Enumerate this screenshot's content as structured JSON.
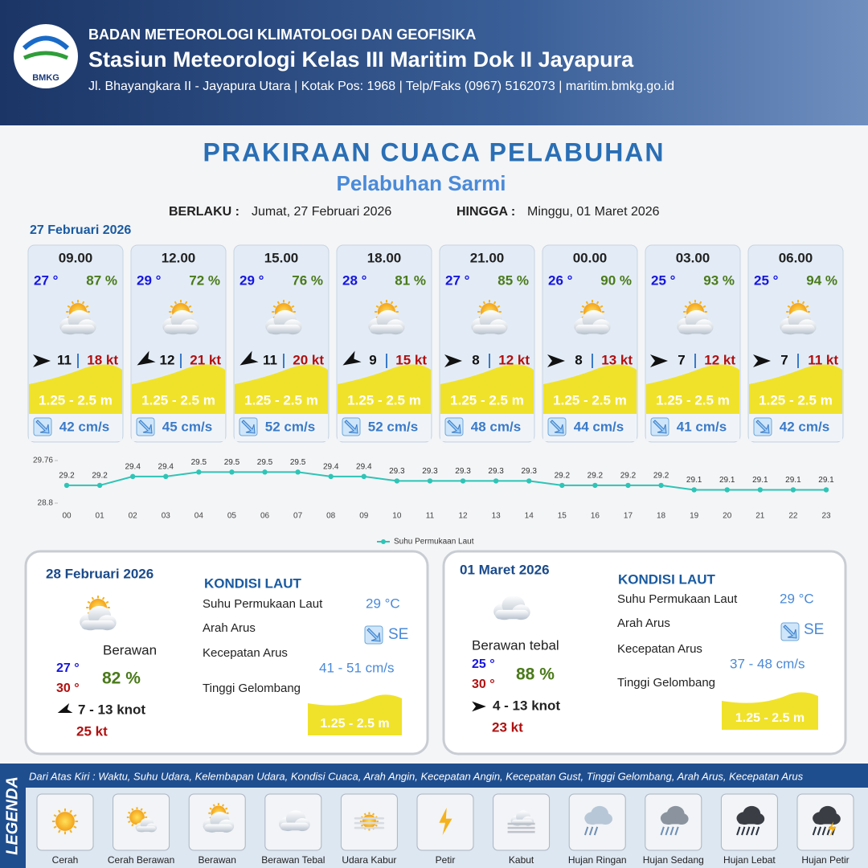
{
  "header": {
    "logo": "BMKG",
    "org": "BADAN METEOROLOGI KLIMATOLOGI DAN GEOFISIKA",
    "station": "Stasiun Meteorologi Kelas III Maritim Dok II Jayapura",
    "address": "Jl. Bhayangkara II - Jayapura Utara | Kotak Pos: 1968 | Telp/Faks (0967) 5162073 | maritim.bmkg.go.id"
  },
  "title": "PRAKIRAAN CUACA PELABUHAN",
  "subtitle": "Pelabuhan Sarmi",
  "validity": {
    "from_label": "BERLAKU :",
    "from": "Jumat, 27 Februari 2026",
    "to_label": "HINGGA :",
    "to": "Minggu, 01 Maret 2026"
  },
  "day1": {
    "date": "27 Februari 2026",
    "slots": [
      {
        "time": "09.00",
        "temp": "27 °",
        "humidity": "87 %",
        "wind": 11,
        "gust": "18 kt",
        "wave": "1.25 - 2.5 m",
        "current": "42 cm/s"
      },
      {
        "time": "12.00",
        "temp": "29 °",
        "humidity": "72 %",
        "wind": 12,
        "gust": "21 kt",
        "wave": "1.25 - 2.5 m",
        "current": "45 cm/s"
      },
      {
        "time": "15.00",
        "temp": "29 °",
        "humidity": "76 %",
        "wind": 11,
        "gust": "20 kt",
        "wave": "1.25 - 2.5 m",
        "current": "52 cm/s"
      },
      {
        "time": "18.00",
        "temp": "28 °",
        "humidity": "81 %",
        "wind": 9,
        "gust": "15 kt",
        "wave": "1.25 - 2.5 m",
        "current": "52 cm/s"
      },
      {
        "time": "21.00",
        "temp": "27 °",
        "humidity": "85 %",
        "wind": 8,
        "gust": "12 kt",
        "wave": "1.25 - 2.5 m",
        "current": "48 cm/s"
      },
      {
        "time": "00.00",
        "temp": "26 °",
        "humidity": "90 %",
        "wind": 8,
        "gust": "13 kt",
        "wave": "1.25 - 2.5 m",
        "current": "44 cm/s"
      },
      {
        "time": "03.00",
        "temp": "25 °",
        "humidity": "93 %",
        "wind": 7,
        "gust": "12 kt",
        "wave": "1.25 - 2.5 m",
        "current": "41 cm/s"
      },
      {
        "time": "06.00",
        "temp": "25 °",
        "humidity": "94 %",
        "wind": 7,
        "gust": "11 kt",
        "wave": "1.25 - 2.5 m",
        "current": "42 cm/s"
      }
    ]
  },
  "chart_data": {
    "type": "line",
    "categories": [
      "00",
      "01",
      "02",
      "03",
      "04",
      "05",
      "06",
      "07",
      "08",
      "09",
      "10",
      "11",
      "12",
      "13",
      "14",
      "15",
      "16",
      "17",
      "18",
      "19",
      "20",
      "21",
      "22",
      "23"
    ],
    "series": [
      {
        "name": "Suhu Permukaan Laut",
        "color": "#2ec4b6",
        "values": [
          29.2,
          29.2,
          29.4,
          29.4,
          29.5,
          29.5,
          29.5,
          29.5,
          29.4,
          29.4,
          29.3,
          29.3,
          29.3,
          29.3,
          29.3,
          29.2,
          29.2,
          29.2,
          29.2,
          29.1,
          29.1,
          29.1,
          29.1,
          29.1
        ]
      }
    ],
    "ylim": [
      28.8,
      29.76
    ],
    "yticks": [
      28.8,
      29.76
    ],
    "legend": "bottom"
  },
  "panels": [
    {
      "date": "28 Februari 2026",
      "condition": "Berawan",
      "temp_min": "27 °",
      "temp_max": "30 °",
      "humidity": "82 %",
      "wind": "7  - 13 knot",
      "gust": "25 kt",
      "sea_title": "KONDISI LAUT",
      "sst_label": "Suhu Permukaan Laut",
      "sst": "29 °C",
      "dir_label": "Arah Arus",
      "dir": "SE",
      "speed_label": "Kecepatan Arus",
      "speed": "41 - 51 cm/s",
      "wave_label": "Tinggi Gelombang",
      "wave": "1.25 - 2.5 m"
    },
    {
      "date": "01 Maret 2026",
      "condition": "Berawan tebal",
      "temp_min": "25 °",
      "temp_max": "30 °",
      "humidity": "88 %",
      "wind": "4  - 13 knot",
      "gust": "23 kt",
      "sea_title": "KONDISI LAUT",
      "sst_label": "Suhu Permukaan Laut",
      "sst": "29 °C",
      "dir_label": "Arah Arus",
      "dir": "SE",
      "speed_label": "Kecepatan Arus",
      "speed": "37  - 48 cm/s",
      "wave_label": "Tinggi Gelombang",
      "wave": "1.25 - 2.5 m"
    }
  ],
  "legend": {
    "title": "LEGENDA",
    "note": "Dari Atas Kiri : Waktu, Suhu Udara, Kelembapan Udara, Kondisi Cuaca, Arah Angin, Kecepatan Angin, Kecepatan Gust, Tinggi Gelombang, Arah Arus, Kecepatan Arus",
    "items": [
      "Cerah",
      "Cerah Berawan",
      "Berawan",
      "Berawan Tebal",
      "Udara Kabur",
      "Petir",
      "Kabut",
      "Hujan Ringan",
      "Hujan Sedang",
      "Hujan Lebat",
      "Hujan Petir"
    ]
  }
}
